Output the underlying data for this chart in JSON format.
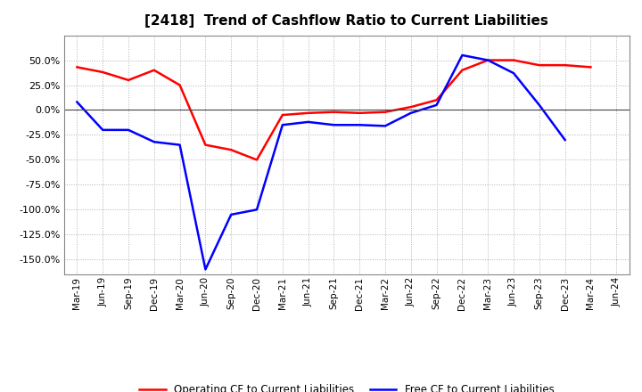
{
  "title": "[2418]  Trend of Cashflow Ratio to Current Liabilities",
  "x_labels": [
    "Mar-19",
    "Jun-19",
    "Sep-19",
    "Dec-19",
    "Mar-20",
    "Jun-20",
    "Sep-20",
    "Dec-20",
    "Mar-21",
    "Jun-21",
    "Sep-21",
    "Dec-21",
    "Mar-22",
    "Jun-22",
    "Sep-22",
    "Dec-22",
    "Mar-23",
    "Jun-23",
    "Sep-23",
    "Dec-23",
    "Mar-24",
    "Jun-24"
  ],
  "operating_cf": [
    43,
    38,
    30,
    40,
    25,
    -35,
    -40,
    -50,
    -5,
    -3,
    -2,
    -3,
    -2,
    3,
    10,
    40,
    50,
    50,
    45,
    45,
    43,
    null
  ],
  "free_cf": [
    8,
    -20,
    -20,
    -32,
    -35,
    -160,
    -105,
    -100,
    -15,
    -12,
    -15,
    -15,
    -16,
    -3,
    5,
    55,
    50,
    37,
    5,
    -30,
    null,
    null
  ],
  "operating_color": "#ff0000",
  "free_color": "#0000ff",
  "bg_color": "#ffffff",
  "plot_bg_color": "#ffffff",
  "grid_color": "#b0b0b0",
  "ylim": [
    -165,
    75
  ],
  "yticks": [
    50,
    25,
    0,
    -25,
    -50,
    -75,
    -100,
    -125,
    -150
  ],
  "legend_op": "Operating CF to Current Liabilities",
  "legend_free": "Free CF to Current Liabilities",
  "title_fontsize": 11,
  "tick_fontsize": 7.5,
  "ytick_fontsize": 8
}
